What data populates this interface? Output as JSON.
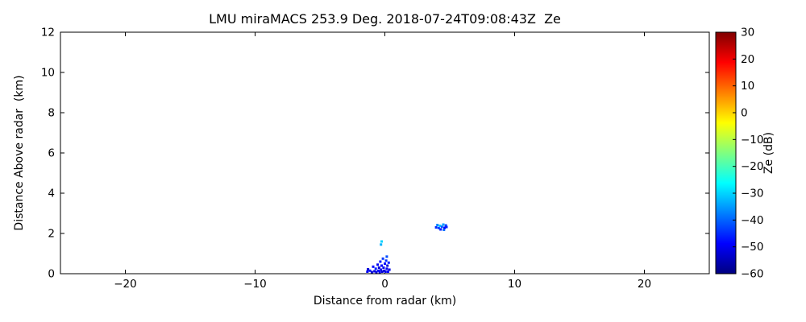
{
  "title": "LMU miraMACS 253.9 Deg. 2018-07-24T09:08:43Z  Ze",
  "chart_data": {
    "type": "scatter",
    "title": "LMU miraMACS 253.9 Deg. 2018-07-24T09:08:43Z  Ze",
    "xlabel": "Distance from radar (km)",
    "ylabel": "Distance Above radar  (km)",
    "xlim": [
      -25,
      25
    ],
    "ylim": [
      0,
      12
    ],
    "grid": false,
    "background": "#ffffff",
    "x_ticks": [
      {
        "value": -20,
        "label": "−20"
      },
      {
        "value": -10,
        "label": "−10"
      },
      {
        "value": 0,
        "label": "0"
      },
      {
        "value": 10,
        "label": "10"
      },
      {
        "value": 20,
        "label": "20"
      }
    ],
    "y_ticks": [
      {
        "value": 0,
        "label": "0"
      },
      {
        "value": 2,
        "label": "2"
      },
      {
        "value": 4,
        "label": "4"
      },
      {
        "value": 6,
        "label": "6"
      },
      {
        "value": 8,
        "label": "8"
      },
      {
        "value": 10,
        "label": "10"
      },
      {
        "value": 12,
        "label": "12"
      }
    ],
    "colorbar": {
      "label": "Ze (dB)",
      "min": -60,
      "max": 30,
      "colormap": "jet",
      "ticks": [
        {
          "value": 30,
          "label": "30"
        },
        {
          "value": 20,
          "label": "20"
        },
        {
          "value": 10,
          "label": "10"
        },
        {
          "value": 0,
          "label": "0"
        },
        {
          "value": -10,
          "label": "−10"
        },
        {
          "value": -20,
          "label": "−20"
        },
        {
          "value": -30,
          "label": "−30"
        },
        {
          "value": -40,
          "label": "−40"
        },
        {
          "value": -50,
          "label": "−50"
        },
        {
          "value": -60,
          "label": "−60"
        }
      ],
      "gradient_stops": [
        {
          "offset": 0.0,
          "color": "#800000"
        },
        {
          "offset": 0.125,
          "color": "#ff0000"
        },
        {
          "offset": 0.375,
          "color": "#ffff00"
        },
        {
          "offset": 0.625,
          "color": "#00ffff"
        },
        {
          "offset": 0.875,
          "color": "#0000ff"
        },
        {
          "offset": 1.0,
          "color": "#000080"
        }
      ]
    },
    "series": [
      {
        "name": "Ze",
        "units": "dB",
        "points": [
          {
            "x": -1.35,
            "y": 0.1,
            "ze": -50
          },
          {
            "x": -1.3,
            "y": 0.22,
            "ze": -52
          },
          {
            "x": -1.15,
            "y": 0.15,
            "ze": -47
          },
          {
            "x": -1.0,
            "y": 0.08,
            "ze": -52
          },
          {
            "x": -0.9,
            "y": 0.35,
            "ze": -49
          },
          {
            "x": -0.8,
            "y": 0.12,
            "ze": -51
          },
          {
            "x": -0.7,
            "y": 0.25,
            "ze": -46
          },
          {
            "x": -0.65,
            "y": 0.08,
            "ze": -52
          },
          {
            "x": -0.55,
            "y": 0.45,
            "ze": -50
          },
          {
            "x": -0.5,
            "y": 0.15,
            "ze": -48
          },
          {
            "x": -0.45,
            "y": 0.3,
            "ze": -52
          },
          {
            "x": -0.4,
            "y": 0.08,
            "ze": -50
          },
          {
            "x": -0.35,
            "y": 0.6,
            "ze": -47
          },
          {
            "x": -0.3,
            "y": 0.2,
            "ze": -51
          },
          {
            "x": -0.25,
            "y": 0.4,
            "ze": -49
          },
          {
            "x": -0.2,
            "y": 0.1,
            "ze": -52
          },
          {
            "x": -0.15,
            "y": 0.75,
            "ze": -44
          },
          {
            "x": -0.1,
            "y": 0.3,
            "ze": -50
          },
          {
            "x": -0.05,
            "y": 0.15,
            "ze": -52
          },
          {
            "x": 0.0,
            "y": 0.5,
            "ze": -48
          },
          {
            "x": 0.05,
            "y": 0.1,
            "ze": -51
          },
          {
            "x": 0.1,
            "y": 0.65,
            "ze": -45
          },
          {
            "x": 0.15,
            "y": 0.25,
            "ze": -50
          },
          {
            "x": 0.2,
            "y": 0.4,
            "ze": -52
          },
          {
            "x": 0.25,
            "y": 0.1,
            "ze": -49
          },
          {
            "x": 0.3,
            "y": 0.55,
            "ze": -46
          },
          {
            "x": 0.35,
            "y": 0.2,
            "ze": -51
          },
          {
            "x": 0.15,
            "y": 0.85,
            "ze": -42
          },
          {
            "x": -0.3,
            "y": 1.45,
            "ze": -33
          },
          {
            "x": -0.25,
            "y": 1.6,
            "ze": -30
          },
          {
            "x": 3.95,
            "y": 2.3,
            "ze": -45
          },
          {
            "x": 4.05,
            "y": 2.42,
            "ze": -37
          },
          {
            "x": 4.15,
            "y": 2.27,
            "ze": -43
          },
          {
            "x": 4.25,
            "y": 2.38,
            "ze": -31
          },
          {
            "x": 4.3,
            "y": 2.2,
            "ze": -47
          },
          {
            "x": 4.4,
            "y": 2.33,
            "ze": -41
          },
          {
            "x": 4.5,
            "y": 2.44,
            "ze": -35
          },
          {
            "x": 4.55,
            "y": 2.18,
            "ze": -39
          },
          {
            "x": 4.6,
            "y": 2.28,
            "ze": -49
          },
          {
            "x": 4.7,
            "y": 2.4,
            "ze": -43
          },
          {
            "x": 4.75,
            "y": 2.32,
            "ze": -46
          }
        ]
      }
    ]
  }
}
